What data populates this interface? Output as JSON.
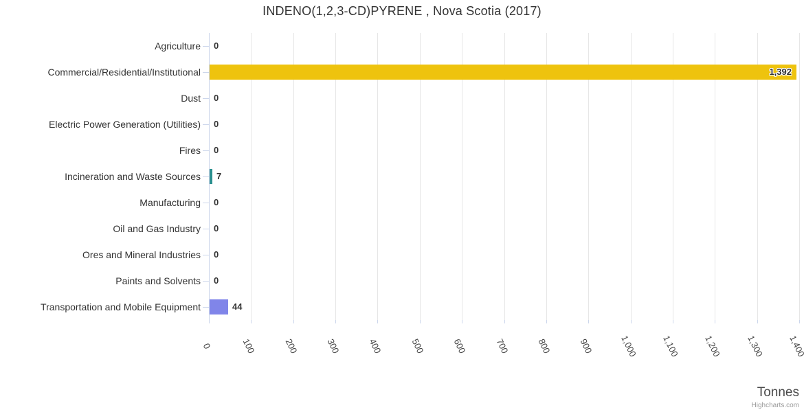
{
  "chart_data": {
    "type": "bar",
    "orientation": "horizontal",
    "title": "INDENO(1,2,3-CD)PYRENE , Nova Scotia (2017)",
    "categories": [
      "Agriculture",
      "Commercial/Residential/Institutional",
      "Dust",
      "Electric Power Generation (Utilities)",
      "Fires",
      "Incineration and Waste Sources",
      "Manufacturing",
      "Oil and Gas Industry",
      "Ores and Mineral Industries",
      "Paints and Solvents",
      "Transportation and Mobile Equipment"
    ],
    "values": [
      0,
      1392,
      0,
      0,
      0,
      7,
      0,
      0,
      0,
      0,
      44
    ],
    "data_labels": [
      "0",
      "1,392",
      "7",
      "44"
    ],
    "bar_colors": [
      null,
      "#eec30e",
      null,
      null,
      null,
      "#2b908f",
      null,
      null,
      null,
      null,
      "#8085e9"
    ],
    "xlabel": "Tonnes",
    "ylabel": "",
    "xlim": [
      0,
      1400
    ],
    "x_tick_interval": 100,
    "x_tick_labels": [
      "0",
      "100",
      "200",
      "300",
      "400",
      "500",
      "600",
      "700",
      "800",
      "900",
      "1,000",
      "1,100",
      "1,200",
      "1,300",
      "1,400"
    ],
    "grid": true,
    "legend": "none",
    "colors": {
      "axis_line": "#ccd6eb",
      "grid_line": "#e6e6e6",
      "title_text": "#333333",
      "label_text": "#333333"
    }
  },
  "credit": "Highcharts.com"
}
